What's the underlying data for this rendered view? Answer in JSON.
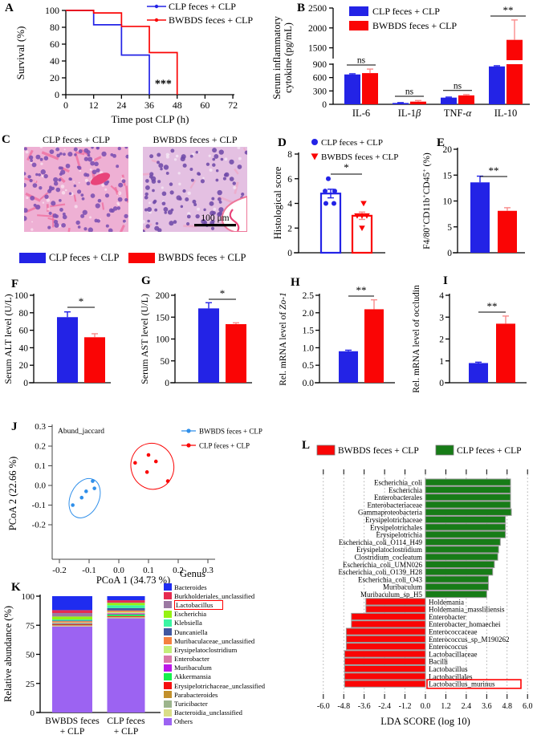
{
  "colors": {
    "blue": "#2323e6",
    "red": "#fa0505",
    "err_red": "#f98b8b",
    "j_blue": "#2f8fea",
    "green": "#177c17",
    "bar_stroke": "#999999"
  },
  "panels": {
    "A": {
      "letter": "A",
      "legend": [
        {
          "label": "CLP  feces + CLP",
          "color": "blue"
        },
        {
          "label": "BWBDS feces + CLP",
          "color": "red"
        }
      ]
    },
    "B": {
      "letter": "B",
      "legend": [
        {
          "label": "CLP feces + CLP",
          "color": "blue"
        },
        {
          "label": "BWBDS feces + CLP",
          "color": "red"
        }
      ]
    },
    "C": {
      "letter": "C",
      "titles": [
        "CLP feces + CLP",
        "BWBDS feces + CLP"
      ],
      "scalebar": "100 μm",
      "legend": [
        {
          "label": "CLP feces + CLP",
          "color": "blue"
        },
        {
          "label": "BWBDS feces + CLP",
          "color": "red"
        }
      ]
    },
    "D": {
      "letter": "D",
      "legend": [
        {
          "label": "CLP feces + CLP",
          "marker": "circle",
          "color": "blue"
        },
        {
          "label": "BWBDS feces + CLP",
          "marker": "triangle",
          "color": "red"
        }
      ]
    },
    "E": {
      "letter": "E"
    },
    "F": {
      "letter": "F"
    },
    "G": {
      "letter": "G"
    },
    "H": {
      "letter": "H"
    },
    "I": {
      "letter": "I"
    },
    "J": {
      "letter": "J",
      "legend": [
        {
          "label": "BWBDS feces + CLP",
          "color": "j_blue"
        },
        {
          "label": "CLP  feces + CLP",
          "color": "red"
        }
      ]
    },
    "K": {
      "letter": "K",
      "legend_title": "Genus"
    },
    "L": {
      "letter": "L",
      "legend": [
        {
          "label": "BWBDS feces + CLP",
          "color": "red"
        },
        {
          "label": "CLP feces + CLP",
          "color": "green"
        }
      ]
    }
  },
  "chart_data": [
    {
      "panel": "A",
      "type": "line",
      "xlabel": "Time post CLP (h)",
      "ylabel": "Survival (%)",
      "xlim": [
        0,
        72
      ],
      "ylim": [
        0,
        100
      ],
      "xticks": [
        "0",
        "12",
        "24",
        "36",
        "48",
        "60",
        "72"
      ],
      "yticks": [
        "0",
        "20",
        "40",
        "60",
        "80",
        "100"
      ],
      "series": [
        {
          "name": "CLP  feces + CLP",
          "color": "blue",
          "points": [
            [
              0,
              100
            ],
            [
              12,
              100
            ],
            [
              12,
              83
            ],
            [
              24,
              83
            ],
            [
              24,
              47
            ],
            [
              36,
              47
            ],
            [
              36,
              0
            ]
          ]
        },
        {
          "name": "BWBDS feces + CLP",
          "color": "red",
          "points": [
            [
              0,
              100
            ],
            [
              12,
              100
            ],
            [
              12,
              97
            ],
            [
              24,
              97
            ],
            [
              24,
              81
            ],
            [
              36,
              81
            ],
            [
              36,
              50
            ],
            [
              48,
              50
            ],
            [
              48,
              0
            ]
          ]
        }
      ],
      "annotation": {
        "text": "***",
        "x": 42,
        "y": 9
      }
    },
    {
      "panel": "B",
      "type": "bar",
      "ylabel": [
        "Serum inflammatory",
        "cytokine (pg/mL)"
      ],
      "categories": [
        "IL-6",
        "IL-1*β*",
        "TNF-*α*",
        "IL-10"
      ],
      "lower_ticks": [
        "0",
        "300",
        "600",
        "900"
      ],
      "upper_ticks": [
        "1500",
        "2000",
        "2500"
      ],
      "lower_range": [
        0,
        900
      ],
      "upper_range": [
        1250,
        2500
      ],
      "series": [
        {
          "name": "CLP feces + CLP",
          "color": "blue",
          "values": [
            670,
            30,
            150,
            850
          ],
          "errors": [
            15,
            8,
            12,
            15
          ]
        },
        {
          "name": "BWBDS feces + CLP",
          "color": "red",
          "values": [
            700,
            60,
            200,
            1700
          ],
          "errors": [
            90,
            25,
            20,
            500
          ]
        }
      ],
      "sig": [
        "ns",
        "ns",
        "ns",
        "**"
      ]
    },
    {
      "panel": "D",
      "type": "scatter-bar",
      "ylabel": "Histological score",
      "yticks": [
        "0",
        "2",
        "4",
        "6",
        "8"
      ],
      "series": [
        {
          "name": "CLP feces + CLP",
          "color": "blue",
          "marker": "circle",
          "mean": 4.8,
          "error": 0.35,
          "points": [
            6,
            5,
            5,
            4,
            4
          ]
        },
        {
          "name": "BWBDS feces + CLP",
          "color": "red",
          "marker": "triangle",
          "mean": 3.0,
          "error": 0.3,
          "points": [
            4,
            3,
            3,
            3,
            2
          ]
        }
      ],
      "sig": "*"
    },
    {
      "panel": "E",
      "type": "bar",
      "ylabel": "F4/80^+CD11b^+CD45^+ (%)",
      "yticks": [
        "0",
        "5",
        "10",
        "15",
        "20"
      ],
      "values": [
        13.6,
        8.1
      ],
      "errors": [
        1.2,
        0.6
      ],
      "sig": "**"
    },
    {
      "panel": "F",
      "type": "bar",
      "ylabel": "Serum ALT level (U/L)",
      "yticks": [
        "0",
        "20",
        "40",
        "60",
        "80",
        "100"
      ],
      "values": [
        75,
        52
      ],
      "errors": [
        6,
        4
      ],
      "sig": "*"
    },
    {
      "panel": "G",
      "type": "bar",
      "ylabel": "Serum AST level (U/L)",
      "yticks": [
        "0",
        "50",
        "100",
        "150",
        "200"
      ],
      "values": [
        170,
        134
      ],
      "errors": [
        13,
        3
      ],
      "sig": "*"
    },
    {
      "panel": "H",
      "type": "bar",
      "ylabel": "Rel. mRNA level of *Zo-1*",
      "yticks": [
        "0.0",
        "0.5",
        "1.0",
        "1.5",
        "2.0",
        "2.5"
      ],
      "values": [
        0.9,
        2.1
      ],
      "errors": [
        0.03,
        0.27
      ],
      "sig": "**"
    },
    {
      "panel": "I",
      "type": "bar",
      "ylabel": "Rel. mRNA level of occludin",
      "yticks": [
        "0",
        "1",
        "2",
        "3",
        "4"
      ],
      "values": [
        0.9,
        2.7
      ],
      "errors": [
        0.04,
        0.35
      ],
      "sig": "**"
    },
    {
      "panel": "J",
      "type": "scatter",
      "title": "Abund_jaccard",
      "xlabel": "PCoA 1 (34.73 %)",
      "ylabel": "PCoA 2 (22.66 %)",
      "xticks": [
        "-0.2",
        "-0.1",
        "0.0",
        "0.1",
        "0.2",
        "0.3"
      ],
      "yticks": [
        "0.3",
        "0.2",
        "0.1",
        "0.0",
        "-0.1",
        "-0.2"
      ],
      "series": [
        {
          "name": "BWBDS feces + CLP",
          "color": "j_blue",
          "points": [
            [
              -0.155,
              -0.1
            ],
            [
              -0.125,
              -0.062
            ],
            [
              -0.11,
              -0.03
            ],
            [
              -0.088,
              0.022
            ],
            [
              -0.082,
              -0.015
            ]
          ],
          "ellipse": {
            "cx": -0.115,
            "cy": -0.065,
            "rx": 0.048,
            "ry": 0.105,
            "angle": 25
          }
        },
        {
          "name": "CLP  feces + CLP",
          "color": "red",
          "points": [
            [
              0.055,
              0.115
            ],
            [
              0.1,
              0.155
            ],
            [
              0.125,
              0.122
            ],
            [
              0.095,
              0.068
            ],
            [
              0.165,
              0.022
            ]
          ],
          "ellipse": {
            "cx": 0.113,
            "cy": 0.0975,
            "rx": 0.072,
            "ry": 0.1175,
            "angle": -15
          }
        }
      ]
    },
    {
      "panel": "K",
      "type": "stacked-bar",
      "ylabel": "Relative abundance (%)",
      "yticks": [
        "0",
        "25",
        "50",
        "75",
        "100"
      ],
      "categories": [
        [
          "BWBDS feces",
          "+ CLP"
        ],
        [
          "CLP feces",
          "+ CLP"
        ]
      ],
      "legend_title": "Genus",
      "genera": [
        {
          "name": "Bacteroides",
          "color": "#1f2cf0",
          "values": [
            12.0,
            3.5
          ]
        },
        {
          "name": "Burkholderiales_unclassified",
          "color": "#e62a50",
          "values": [
            2.5,
            2.0
          ]
        },
        {
          "name": "Lactobacillus",
          "color": "#9b79a2",
          "values": [
            3.0,
            0.3
          ],
          "highlight": true
        },
        {
          "name": "Escherichia",
          "color": "#95f212",
          "values": [
            2.5,
            2.0
          ]
        },
        {
          "name": "Klebsiella",
          "color": "#3bf5a3",
          "values": [
            1.0,
            2.5
          ]
        },
        {
          "name": "Duncaniella",
          "color": "#4157a0",
          "values": [
            0.5,
            2.0
          ]
        },
        {
          "name": "Muribaculaceae_unclassified",
          "color": "#f5803f",
          "values": [
            1.0,
            1.2
          ]
        },
        {
          "name": "Erysipelatoclostridium",
          "color": "#c4ef7a",
          "values": [
            0.5,
            0.8
          ]
        },
        {
          "name": "Enterobacter",
          "color": "#d878a8",
          "values": [
            0.5,
            0.8
          ]
        },
        {
          "name": "Muribaculum",
          "color": "#bb17e9",
          "values": [
            0.3,
            0.5
          ]
        },
        {
          "name": "Akkermansia",
          "color": "#16f04e",
          "values": [
            0.4,
            1.5
          ]
        },
        {
          "name": "Erysipelotrichaceae_unclassified",
          "color": "#f51111",
          "values": [
            0.7,
            0.7
          ]
        },
        {
          "name": "Parabacteroides",
          "color": "#c2902c",
          "values": [
            0.3,
            0.4
          ]
        },
        {
          "name": "Turicibacter",
          "color": "#9cb48c",
          "values": [
            0.3,
            0.3
          ]
        },
        {
          "name": "Bacteroidia_unclassified",
          "color": "#dade88",
          "values": [
            0.5,
            0.5
          ]
        },
        {
          "name": "Others",
          "color": "#9c63f2",
          "values": [
            74.0,
            81.0
          ]
        }
      ]
    },
    {
      "panel": "L",
      "type": "lefse",
      "xlabel": "LDA SCORE (log 10)",
      "xticks": [
        "-6.0",
        "-4.8",
        "-3.6",
        "-2.4",
        "-1.2",
        "0.0",
        "1.2",
        "2.4",
        "3.6",
        "4.8",
        "6.0"
      ],
      "bars": [
        {
          "name": "Escherichia_coli",
          "value": 5.0
        },
        {
          "name": "Escherichia",
          "value": 5.0
        },
        {
          "name": "Enterobacterales",
          "value": 5.0
        },
        {
          "name": "Enterobacteriaceae",
          "value": 5.0
        },
        {
          "name": "Gammaproteobacteria",
          "value": 5.05
        },
        {
          "name": "Erysipelotrichaceae",
          "value": 4.7
        },
        {
          "name": "Erysipelotrichales",
          "value": 4.7
        },
        {
          "name": "Erysipelotrichia",
          "value": 4.7
        },
        {
          "name": "Escherichia_coli_O114_H49",
          "value": 4.4
        },
        {
          "name": "Erysipelatoclostridium",
          "value": 4.3
        },
        {
          "name": "Clostridium_cocleatum",
          "value": 4.25
        },
        {
          "name": "Escherichia_coli_UMN026",
          "value": 4.05
        },
        {
          "name": "Escherichia_coli_O139_H28",
          "value": 3.95
        },
        {
          "name": "Escherichia_coli_O43",
          "value": 3.7
        },
        {
          "name": "Muribaculum",
          "value": 3.7
        },
        {
          "name": "Muribaculum_sp_H5",
          "value": 3.6
        },
        {
          "name": "Holdemania",
          "value": -3.5
        },
        {
          "name": "Holdemania_massliliensis",
          "value": -3.5
        },
        {
          "name": "Enterobacter",
          "value": -4.35
        },
        {
          "name": "Enterobacter_homaechei",
          "value": -4.35
        },
        {
          "name": "Enterococcaceae",
          "value": -4.65
        },
        {
          "name": "Enterococcus_sp_M190262",
          "value": -4.65
        },
        {
          "name": "Enterococcus",
          "value": -4.65
        },
        {
          "name": "Lactobacillaceae",
          "value": -4.75
        },
        {
          "name": "Bacilli",
          "value": -4.75
        },
        {
          "name": "Lactobacillus",
          "value": -4.75
        },
        {
          "name": "Lactobacillales",
          "value": -4.75
        },
        {
          "name": "Lactobacillus_murinus",
          "value": -4.75,
          "highlight": true
        }
      ]
    }
  ]
}
